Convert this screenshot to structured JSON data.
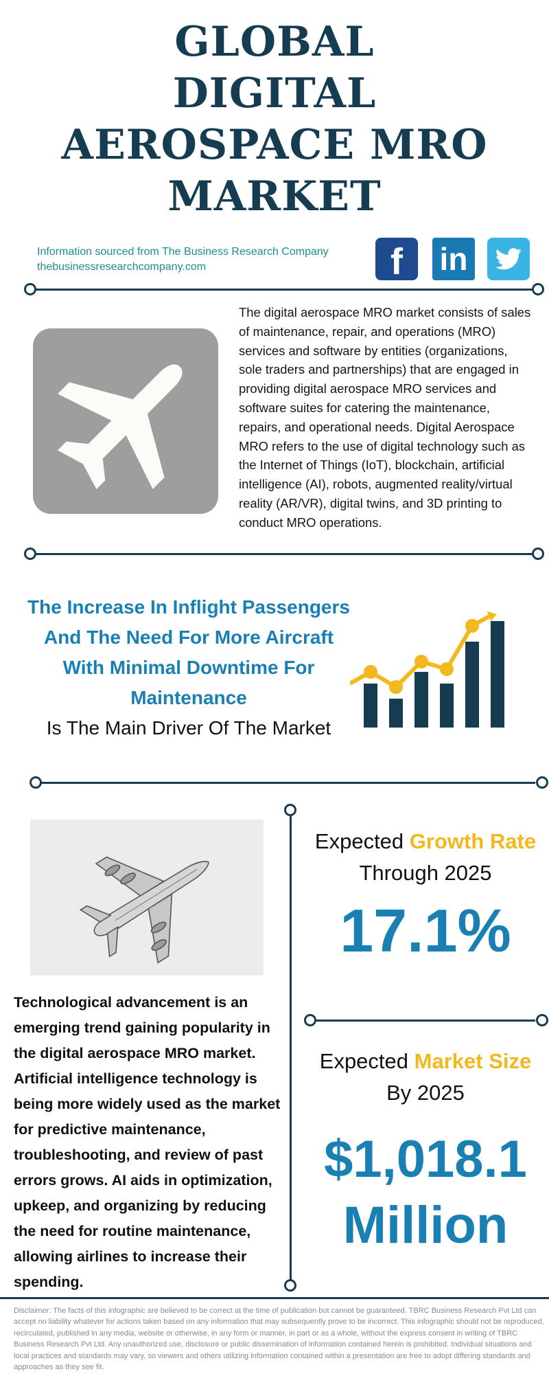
{
  "title": {
    "line1": "GLOBAL",
    "line2": "DIGITAL",
    "line3": "AEROSPACE MRO",
    "line4": "MARKET"
  },
  "source": {
    "label": "Information sourced from The Business Research Company",
    "url": "thebusinessresearchcompany.com"
  },
  "social": {
    "facebook_letter": "f",
    "linkedin_text": "in",
    "colors": {
      "facebook": "#1e4a8f",
      "linkedin": "#1979b3",
      "twitter": "#3ab4e5"
    }
  },
  "description": "The digital aerospace MRO market consists of sales of maintenance, repair, and operations (MRO) services and software by entities (organizations, sole traders and partnerships) that are engaged in providing digital aerospace MRO services and software suites for catering the maintenance, repairs, and operational needs. Digital Aerospace MRO refers to the use of digital technology such as the Internet of Things (IoT), blockchain, artificial intelligence (AI), robots, augmented reality/virtual reality (AR/VR), digital twins, and 3D printing to conduct MRO operations.",
  "driver": {
    "highlight": "The Increase In Inflight Passengers And The Need For More Aircraft With Minimal Downtime For Maintenance",
    "rest": "Is The Main Driver Of The Market"
  },
  "trend": "Technological advancement is an emerging trend gaining popularity in the digital aerospace MRO market. Artificial intelligence technology is being more widely used as the market for predictive maintenance, troubleshooting, and review of past errors grows. AI aids in optimization, upkeep, and organizing by reducing the need for routine maintenance, allowing airlines to increase their spending.",
  "growth": {
    "prefix": "Expected",
    "highlight": "Growth Rate",
    "sub": "Through 2025",
    "value": "17.1%"
  },
  "market_size": {
    "prefix": "Expected",
    "highlight": "Market Size",
    "sub": "By 2025",
    "value_line1": "$1,018.1",
    "value_line2": "Million"
  },
  "disclaimer": "Disclaimer: The facts of this infographic are believed to be correct at the time of publication but cannot be guaranteed. TBRC Business Research Pvt Ltd can accept no liability whatever for actions taken based on any information that may subsequently prove to be incorrect. This infographic should not be reproduced, recirculated, published in any media, website or otherwise, in any form or manner, in part or as a whole, without the express consent in writing of TBRC Business Research Pvt Ltd. Any unauthorized use, disclosure or public dissemination of information contained herein is prohibited. Individual situations and local practices and standards may vary, so viewers and others utilizing information contained within a presentation are free to adopt differing standards and approaches as they see fit.",
  "colors": {
    "navy": "#163c52",
    "blue": "#1a7fb3",
    "gold": "#f2b81d",
    "teal": "#1c8f8a"
  },
  "icons": [
    "facebook-icon",
    "linkedin-icon",
    "twitter-icon",
    "airplane-icon",
    "growth-chart-icon",
    "aircraft-sketch-image"
  ]
}
